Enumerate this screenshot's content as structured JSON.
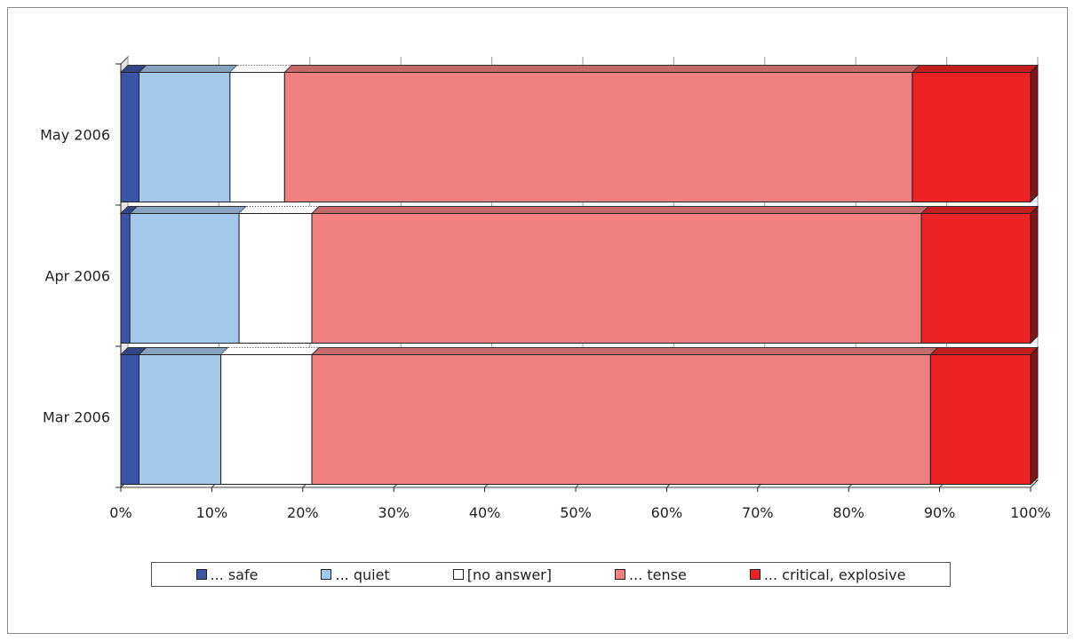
{
  "chart_data": {
    "type": "bar",
    "orientation": "horizontal",
    "stacked": "percent",
    "style": "3d",
    "categories": [
      "Mar 2006",
      "Apr 2006",
      "May 2006"
    ],
    "series": [
      {
        "name": "... safe",
        "color": "#3a55a5",
        "values": [
          2,
          1,
          2
        ]
      },
      {
        "name": "... quiet",
        "color": "#a3c8ea",
        "values": [
          9,
          12,
          10
        ]
      },
      {
        "name": "[no answer]",
        "color": "#ffffff",
        "values": [
          10,
          8,
          6
        ]
      },
      {
        "name": "... tense",
        "color": "#f28080",
        "values": [
          68,
          67,
          69
        ]
      },
      {
        "name": "... critical, explosive",
        "color": "#ec2224",
        "values": [
          11,
          12,
          13
        ]
      }
    ],
    "xlim": [
      0,
      100
    ],
    "x_ticks": [
      "0%",
      "10%",
      "20%",
      "30%",
      "40%",
      "50%",
      "60%",
      "70%",
      "80%",
      "90%",
      "100%"
    ],
    "grid": true,
    "legend_position": "bottom",
    "title": "",
    "xlabel": "",
    "ylabel": ""
  }
}
